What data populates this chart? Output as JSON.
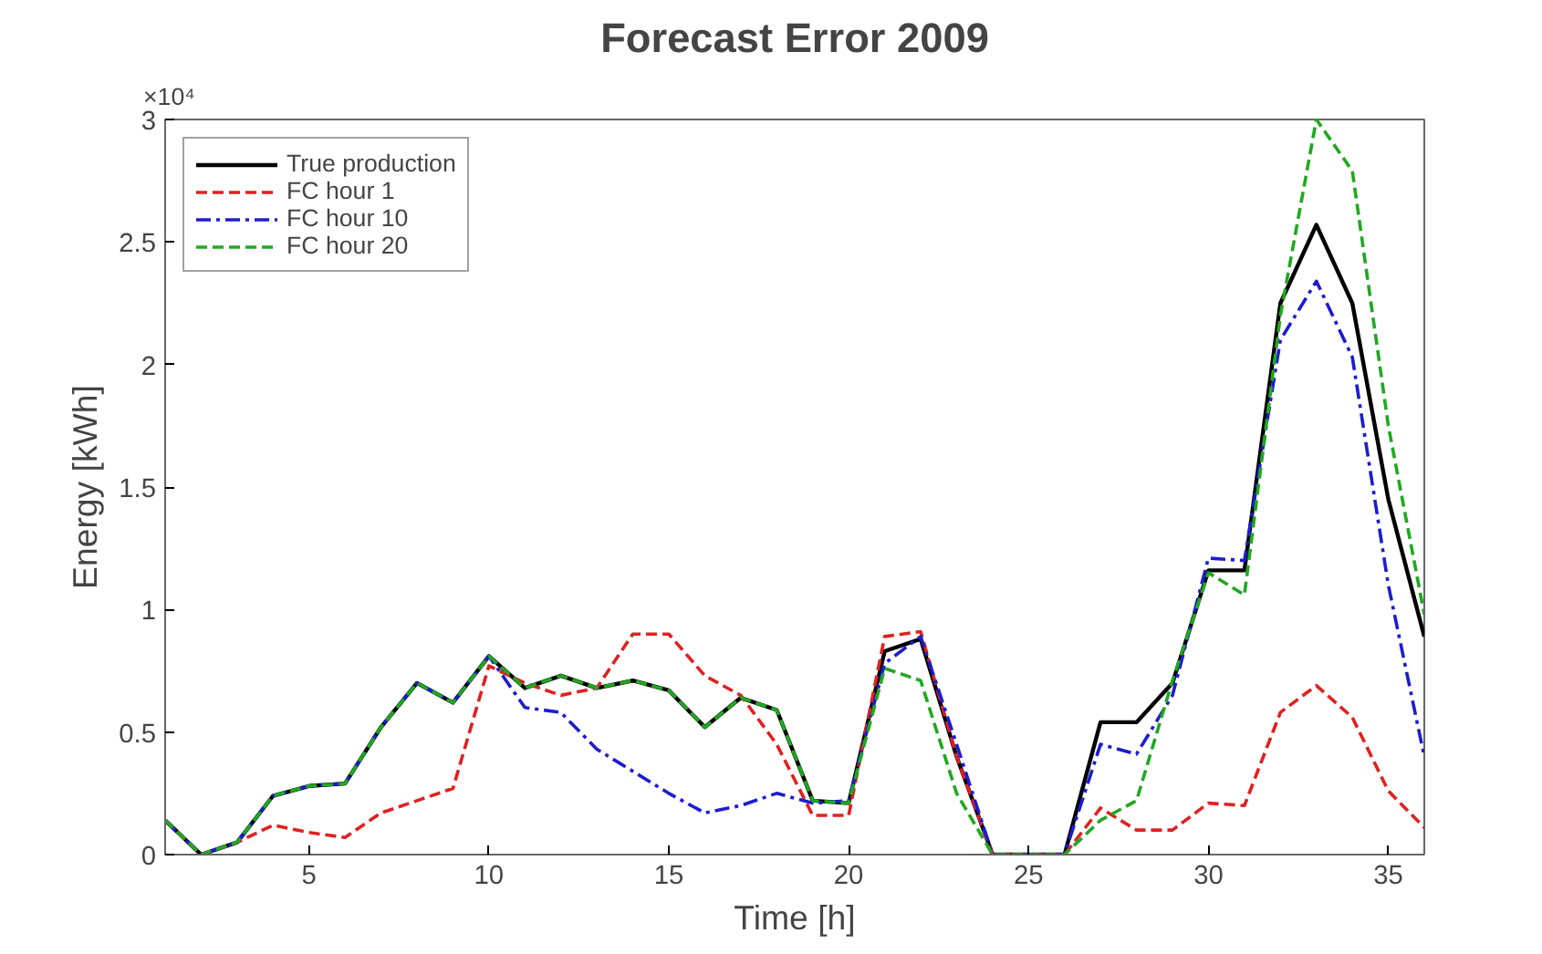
{
  "chart_data": {
    "type": "line",
    "title": "Forecast Error 2009",
    "xlabel": "Time [h]",
    "ylabel": "Energy [kWh]",
    "annotations": [
      "×10⁴"
    ],
    "x": [
      1,
      2,
      3,
      4,
      5,
      6,
      7,
      8,
      9,
      10,
      11,
      12,
      13,
      14,
      15,
      16,
      17,
      18,
      19,
      20,
      21,
      22,
      23,
      24,
      25,
      26,
      27,
      28,
      29,
      30,
      31,
      32,
      33,
      34,
      35,
      36
    ],
    "series": [
      {
        "name": "True production",
        "color": "#000000",
        "line_style": "solid",
        "values": [
          0.14,
          0,
          0.05,
          0.24,
          0.28,
          0.29,
          0.52,
          0.7,
          0.62,
          0.81,
          0.68,
          0.73,
          0.68,
          0.71,
          0.67,
          0.52,
          0.64,
          0.59,
          0.22,
          0.21,
          0.83,
          0.88,
          0.4,
          0,
          0,
          0,
          0.54,
          0.54,
          0.7,
          1.16,
          1.16,
          2.25,
          2.57,
          2.25,
          1.45,
          0.89
        ]
      },
      {
        "name": "FC hour 1",
        "color": "#e02020",
        "line_style": "dashed",
        "values": [
          0.14,
          0,
          0.05,
          0.12,
          0.09,
          0.07,
          0.17,
          0.22,
          0.27,
          0.77,
          0.7,
          0.65,
          0.68,
          0.9,
          0.9,
          0.73,
          0.65,
          0.45,
          0.16,
          0.16,
          0.89,
          0.91,
          0.4,
          0,
          0,
          0,
          0.19,
          0.1,
          0.1,
          0.21,
          0.2,
          0.58,
          0.69,
          0.56,
          0.26,
          0.11
        ]
      },
      {
        "name": "FC hour 10",
        "color": "#1c1cd0",
        "line_style": "dashdot",
        "values": [
          0.14,
          0,
          0.05,
          0.24,
          0.28,
          0.29,
          0.52,
          0.7,
          0.62,
          0.81,
          0.6,
          0.58,
          0.43,
          0.34,
          0.25,
          0.17,
          0.2,
          0.25,
          0.21,
          0.22,
          0.78,
          0.89,
          0.45,
          0,
          0,
          0,
          0.45,
          0.41,
          0.65,
          1.21,
          1.2,
          2.1,
          2.34,
          2.03,
          1.1,
          0.4
        ]
      },
      {
        "name": "FC hour 20",
        "color": "#20a820",
        "line_style": "dashed",
        "values": [
          0.14,
          0,
          0.05,
          0.24,
          0.28,
          0.29,
          0.52,
          0.7,
          0.62,
          0.81,
          0.68,
          0.73,
          0.68,
          0.71,
          0.67,
          0.52,
          0.64,
          0.59,
          0.22,
          0.21,
          0.76,
          0.71,
          0.25,
          0,
          0,
          0,
          0.14,
          0.22,
          0.71,
          1.15,
          1.06,
          2.2,
          3.0,
          2.79,
          1.75,
          0.98
        ]
      }
    ],
    "xlim": [
      1,
      36
    ],
    "xticks": [
      5,
      10,
      15,
      20,
      25,
      30,
      35
    ],
    "ylim": [
      0,
      3
    ],
    "yticks": [
      0,
      0.5,
      1,
      1.5,
      2,
      2.5,
      3
    ],
    "legend": "top left",
    "grid": false
  }
}
